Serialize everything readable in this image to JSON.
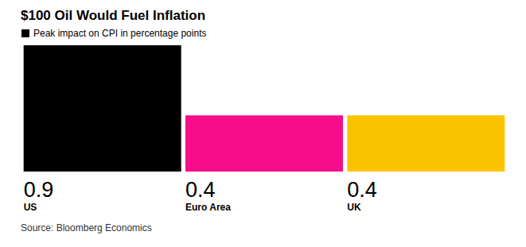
{
  "chart_data": {
    "type": "bar",
    "title": "$100 Oil Would Fuel Inflation",
    "source": "Source: Bloomberg Economics",
    "categories": [
      "US",
      "Euro Area",
      "UK"
    ],
    "series": [
      {
        "name": "Peak impact on CPI in percentage points",
        "color": "#000000",
        "values": [
          0.9,
          0.4,
          0.4
        ],
        "colors": [
          "#000000",
          "#f70d8a",
          "#fcc300"
        ]
      }
    ],
    "ylim": [
      0,
      0.9
    ],
    "grid": false,
    "legend": "top-left",
    "data_labels": true,
    "tick_labels": false
  }
}
